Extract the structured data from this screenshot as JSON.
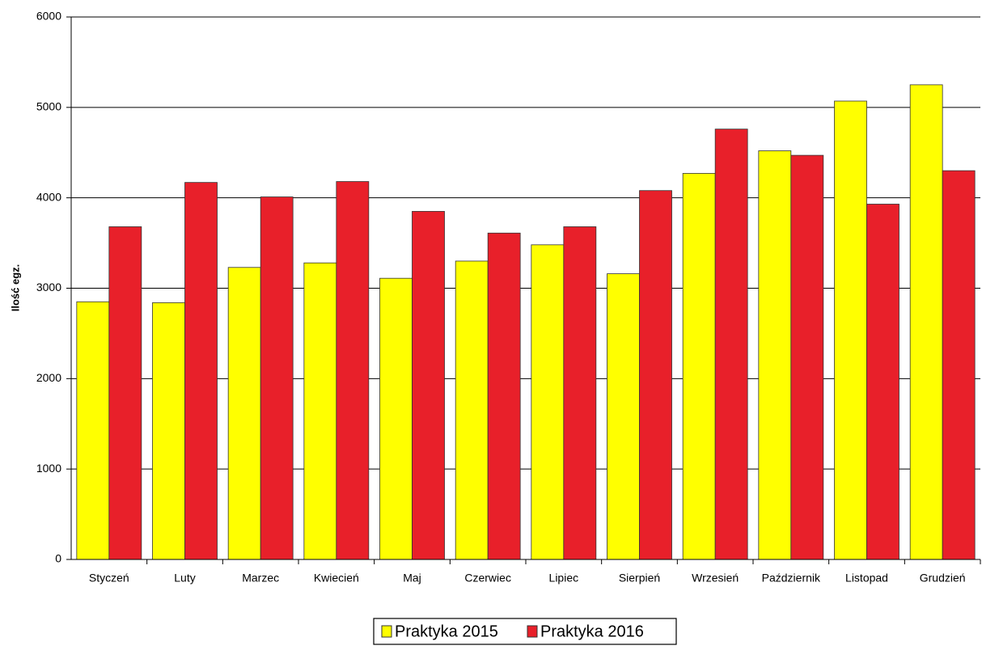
{
  "chart_data": {
    "type": "bar",
    "y_label": "Ilość egz.",
    "categories": [
      "Styczeń",
      "Luty",
      "Marzec",
      "Kwiecień",
      "Maj",
      "Czerwiec",
      "Lipiec",
      "Sierpień",
      "Wrzesień",
      "Październik",
      "Listopad",
      "Grudzień"
    ],
    "series": [
      {
        "name": "Praktyka 2015",
        "color": "#ffff00",
        "values": [
          2850,
          2840,
          3230,
          3280,
          3110,
          3300,
          3480,
          3160,
          4270,
          4520,
          5070,
          5250
        ]
      },
      {
        "name": "Praktyka 2016",
        "color": "#e8202a",
        "values": [
          3680,
          4170,
          4010,
          4180,
          3850,
          3610,
          3680,
          4080,
          4760,
          4470,
          3930,
          4300
        ]
      }
    ],
    "ylim": [
      0,
      6000
    ],
    "yticks": [
      0,
      1000,
      2000,
      3000,
      4000,
      5000,
      6000
    ],
    "grid": true,
    "legend": "bottom"
  }
}
